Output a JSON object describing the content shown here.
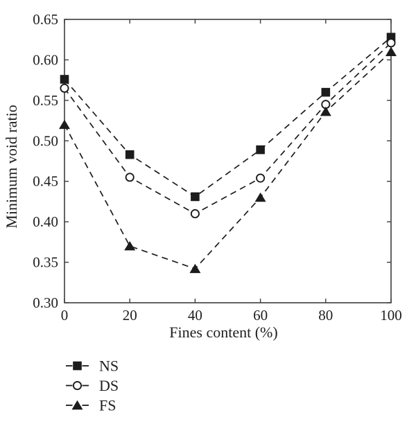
{
  "figure": {
    "background": "#ffffff",
    "axis_color": "#3c3c3c",
    "series_color": "#1c1c1c",
    "text_color": "#1f1f1f"
  },
  "chart_data": {
    "type": "line",
    "title": "",
    "xlabel": "Fines content (%)",
    "ylabel": "Minimum void ratio",
    "x": [
      0,
      20,
      40,
      60,
      80,
      100
    ],
    "series": [
      {
        "name": "NS",
        "marker": "filled-square",
        "line_style": "dashed",
        "values": [
          0.576,
          0.483,
          0.431,
          0.489,
          0.56,
          0.628
        ]
      },
      {
        "name": "DS",
        "marker": "open-circle",
        "line_style": "dashed",
        "values": [
          0.565,
          0.455,
          0.41,
          0.454,
          0.545,
          0.621
        ]
      },
      {
        "name": "FS",
        "marker": "filled-triangle",
        "line_style": "dashed",
        "values": [
          0.52,
          0.37,
          0.342,
          0.43,
          0.536,
          0.61
        ]
      }
    ],
    "xlim": [
      0,
      100
    ],
    "ylim": [
      0.3,
      0.65
    ],
    "xticks": [
      0,
      20,
      40,
      60,
      80,
      100
    ],
    "xtick_labels": [
      "0",
      "20",
      "40",
      "60",
      "80",
      "100"
    ],
    "yticks": [
      0.3,
      0.35,
      0.4,
      0.45,
      0.5,
      0.55,
      0.6,
      0.65
    ],
    "ytick_labels": [
      "0.30",
      "0.35",
      "0.40",
      "0.45",
      "0.50",
      "0.55",
      "0.60",
      "0.65"
    ],
    "grid": false,
    "tick_direction": "in",
    "legend": {
      "position": "below-left",
      "entries": [
        {
          "label": "NS",
          "marker": "filled-square"
        },
        {
          "label": "DS",
          "marker": "open-circle"
        },
        {
          "label": "FS",
          "marker": "filled-triangle"
        }
      ]
    }
  }
}
